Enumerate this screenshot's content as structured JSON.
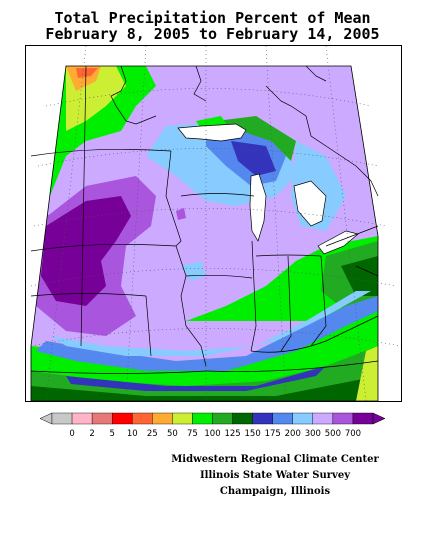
{
  "title": {
    "line1": "Total Precipitation Percent of Mean",
    "line2": "February 8, 2005 to February 14, 2005"
  },
  "legend": {
    "labels": [
      "0",
      "2",
      "5",
      "10",
      "25",
      "50",
      "75",
      "100",
      "125",
      "150",
      "175",
      "200",
      "300",
      "500",
      "700"
    ],
    "colors": [
      "#c8c8c8",
      "#ffb4c8",
      "#e87878",
      "#ff0000",
      "#ff6633",
      "#ffaa33",
      "#ccee33",
      "#00ee00",
      "#22aa22",
      "#006600",
      "#3333bb",
      "#5588ee",
      "#88ccff",
      "#ccaaff",
      "#aa55dd",
      "#770099"
    ]
  },
  "credits": {
    "line1": "Midwestern Regional Climate Center",
    "line2": "Illinois State Water Survey",
    "line3": "Champaign, Illinois"
  }
}
